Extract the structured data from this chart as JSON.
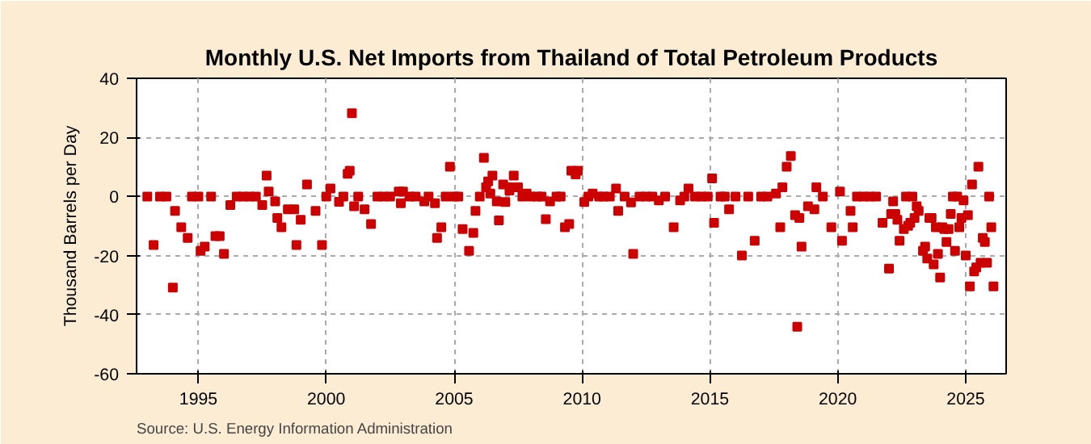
{
  "chart_data": {
    "type": "scatter",
    "title": "Monthly U.S. Net Imports from Thailand of Total Petroleum Products",
    "ylabel": "Thousand Barrels per Day",
    "annotations": [
      "Source: U.S. Energy Information Administration"
    ],
    "marker": "square",
    "grid": true,
    "xlim": [
      "1992-08",
      "2026-08"
    ],
    "xticks": [
      "1995",
      "2000",
      "2005",
      "2010",
      "2015",
      "2020",
      "2025"
    ],
    "ylim": [
      -60,
      40
    ],
    "yticks": [
      -60,
      -40,
      -20,
      0,
      20,
      40
    ],
    "series": [
      {
        "color": "#cc0000",
        "x": [
          "1993-01",
          "1993-04",
          "1993-07",
          "1993-10",
          "1994-01",
          "1994-02",
          "1994-05",
          "1994-08",
          "1994-10",
          "1995-01",
          "1995-02",
          "1995-04",
          "1995-07",
          "1995-09",
          "1995-11",
          "1996-01",
          "1996-04",
          "1996-07",
          "1996-10",
          "1997-01",
          "1997-04",
          "1997-07",
          "1997-09",
          "1997-10",
          "1998-01",
          "1998-02",
          "1998-04",
          "1998-07",
          "1998-10",
          "1998-11",
          "1999-01",
          "1999-04",
          "1999-08",
          "1999-11",
          "2000-01",
          "2000-03",
          "2000-07",
          "2000-09",
          "2000-11",
          "2000-12",
          "2001-01",
          "2001-02",
          "2001-04",
          "2001-07",
          "2001-10",
          "2002-01",
          "2002-04",
          "2002-07",
          "2002-11",
          "2002-12",
          "2003-01",
          "2003-04",
          "2003-07",
          "2003-11",
          "2004-01",
          "2004-04",
          "2004-05",
          "2004-07",
          "2004-09",
          "2004-11",
          "2005-01",
          "2005-03",
          "2005-05",
          "2005-08",
          "2005-10",
          "2005-11",
          "2006-01",
          "2006-03",
          "2006-04",
          "2006-05",
          "2006-06",
          "2006-07",
          "2006-09",
          "2006-10",
          "2006-12",
          "2007-01",
          "2007-03",
          "2007-04",
          "2007-05",
          "2007-07",
          "2007-09",
          "2007-11",
          "2008-01",
          "2008-04",
          "2008-06",
          "2008-08",
          "2008-10",
          "2009-01",
          "2009-03",
          "2009-05",
          "2009-07",
          "2009-08",
          "2009-10",
          "2009-11",
          "2010-02",
          "2010-04",
          "2010-06",
          "2010-09",
          "2010-11",
          "2011-02",
          "2011-05",
          "2011-06",
          "2011-09",
          "2011-12",
          "2012-01",
          "2012-04",
          "2012-07",
          "2012-10",
          "2013-01",
          "2013-04",
          "2013-08",
          "2013-11",
          "2014-01",
          "2014-03",
          "2014-06",
          "2014-09",
          "2014-12",
          "2015-02",
          "2015-03",
          "2015-06",
          "2015-08",
          "2015-10",
          "2016-01",
          "2016-04",
          "2016-07",
          "2016-10",
          "2017-01",
          "2017-04",
          "2017-08",
          "2017-10",
          "2017-11",
          "2018-01",
          "2018-03",
          "2018-05",
          "2018-06",
          "2018-07",
          "2018-08",
          "2018-11",
          "2019-02",
          "2019-03",
          "2019-06",
          "2019-10",
          "2020-02",
          "2020-03",
          "2020-07",
          "2020-08",
          "2020-10",
          "2021-01",
          "2021-04",
          "2021-07",
          "2021-10",
          "2022-01",
          "2022-02",
          "2022-03",
          "2022-04",
          "2022-05",
          "2022-06",
          "2022-08",
          "2022-09",
          "2022-10",
          "2022-11",
          "2022-12",
          "2023-01",
          "2023-02",
          "2023-03",
          "2023-05",
          "2023-06",
          "2023-07",
          "2023-08",
          "2023-09",
          "2023-10",
          "2023-11",
          "2023-12",
          "2024-01",
          "2024-02",
          "2024-03",
          "2024-04",
          "2024-05",
          "2024-06",
          "2024-07",
          "2024-08",
          "2024-09",
          "2024-10",
          "2024-11",
          "2024-12",
          "2025-01",
          "2025-02",
          "2025-03",
          "2025-04",
          "2025-05",
          "2025-06",
          "2025-07",
          "2025-08",
          "2025-09",
          "2025-10",
          "2025-11",
          "2025-12",
          "2026-01",
          "2026-02"
        ],
        "values": [
          0,
          -16.4,
          0,
          0,
          -30.8,
          -4.9,
          -10.4,
          -14,
          0,
          0,
          -18.4,
          -17,
          0,
          -13.4,
          -13.4,
          -19.4,
          -2.9,
          0,
          0,
          0,
          0,
          -2.9,
          7.1,
          1.7,
          -1.7,
          -7.3,
          -10.4,
          -4.3,
          -4.3,
          -16.4,
          -7.9,
          4.1,
          -4.9,
          -16.4,
          0,
          2.7,
          -1.8,
          0,
          7.7,
          8.7,
          28.2,
          -3.3,
          0,
          -4.3,
          -9.3,
          0,
          0,
          0,
          1.7,
          -2.3,
          1.7,
          0,
          0,
          -1.7,
          0,
          -2.3,
          -14,
          -10.4,
          0,
          10.1,
          0,
          0,
          -11,
          -18.4,
          -12.3,
          -4.9,
          0,
          13.1,
          3.1,
          5.1,
          1,
          7.1,
          -1.7,
          -8.1,
          4.1,
          -1.9,
          2,
          3.1,
          7.1,
          3.1,
          0,
          1,
          0,
          0,
          0,
          -7.7,
          -1.7,
          0,
          0,
          -10.4,
          -9.3,
          8.7,
          7.5,
          8.7,
          -1.9,
          0,
          1,
          0,
          0,
          0,
          2.7,
          -4.9,
          0,
          -2,
          -19.4,
          0,
          0,
          0,
          -1.3,
          0,
          -10.4,
          -1.3,
          0,
          2.7,
          0,
          0,
          0,
          6.1,
          -8.9,
          0,
          0,
          -4.3,
          0,
          -20,
          0,
          -15,
          0,
          0,
          1,
          -10.4,
          3.1,
          10.1,
          13.7,
          -6.3,
          -44.1,
          -7.3,
          -17,
          -3.3,
          -4.3,
          3.1,
          0,
          -10.4,
          1.7,
          -15,
          -4.9,
          -10.4,
          0,
          0,
          0,
          0,
          -8.9,
          -24.4,
          -5.9,
          -1.7,
          -5.9,
          -7.9,
          -15,
          -11,
          0,
          -9.9,
          -8.9,
          0,
          -7.3,
          -3.3,
          -4.9,
          -18.4,
          -17,
          -21,
          -7.3,
          -7.3,
          -23,
          -10.4,
          -19.4,
          -27.4,
          -10.4,
          -11,
          -15.4,
          -11,
          -5.9,
          0,
          -18.4,
          0,
          -10.4,
          -7.3,
          -1.3,
          -20,
          -6.3,
          -30.4,
          4.1,
          -25.4,
          -24,
          10.1,
          -22.4,
          -14,
          -15.4,
          -22.4,
          0,
          -10.4,
          -30.4
        ]
      }
    ]
  }
}
